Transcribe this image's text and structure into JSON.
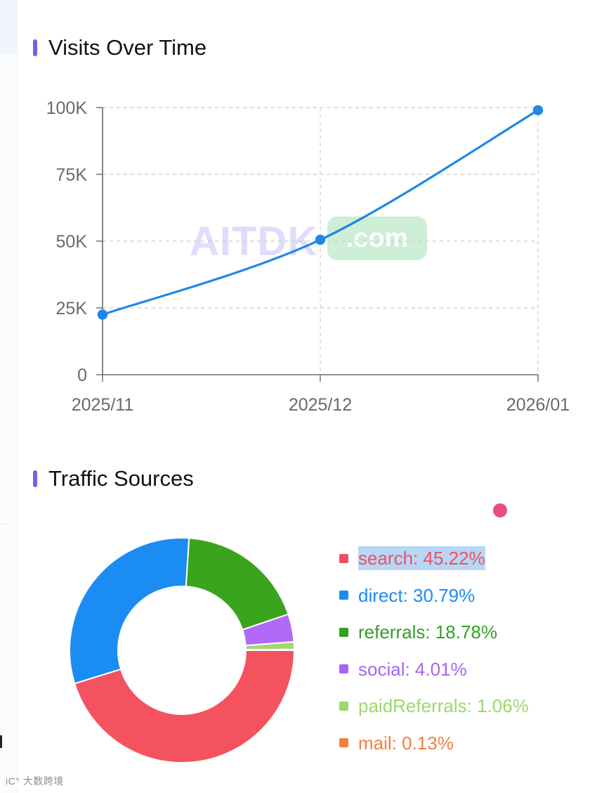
{
  "page": {
    "watermark": {
      "main": "AITDK",
      "pill": ".com"
    },
    "footer_mark": "iC° 大数跨境"
  },
  "charts": [
    {
      "title": "Visits Over Time",
      "color": "#1e88e5",
      "chart_data": {
        "type": "line",
        "x": [
          "2025/11",
          "2025/12",
          "2026/01"
        ],
        "y_ticks": [
          "0",
          "25K",
          "50K",
          "75K",
          "100K"
        ],
        "ylim": [
          0,
          100000
        ],
        "y_tick_values": [
          0,
          25000,
          50000,
          75000,
          100000
        ],
        "series": [
          {
            "values": [
              22500,
              50500,
              99000
            ]
          }
        ],
        "grid": true
      }
    },
    {
      "title": "Traffic Sources",
      "chart_data": {
        "type": "pie",
        "donut": true,
        "slices": [
          {
            "label": "search",
            "value": 45.22,
            "display": "search: 45.22%",
            "color": "#f3525e",
            "legend_color": "#f04f64"
          },
          {
            "label": "direct",
            "value": 30.79,
            "display": "direct: 30.79%",
            "color": "#1a8cf2",
            "legend_color": "#1a8cf2"
          },
          {
            "label": "referrals",
            "value": 18.78,
            "display": "referrals: 18.78%",
            "color": "#3aa41f",
            "legend_color": "#31a123"
          },
          {
            "label": "social",
            "value": 4.01,
            "display": "social: 4.01%",
            "color": "#b06af7",
            "legend_color": "#a765f2"
          },
          {
            "label": "paidReferrals",
            "value": 1.06,
            "display": "paidReferrals: 1.06%",
            "color": "#9ed96f",
            "legend_color": "#9bd96b"
          },
          {
            "label": "mail",
            "value": 0.13,
            "display": "mail: 0.13%",
            "color": "#f0813e",
            "legend_color": "#f0813e"
          }
        ],
        "selected": "search"
      }
    }
  ]
}
